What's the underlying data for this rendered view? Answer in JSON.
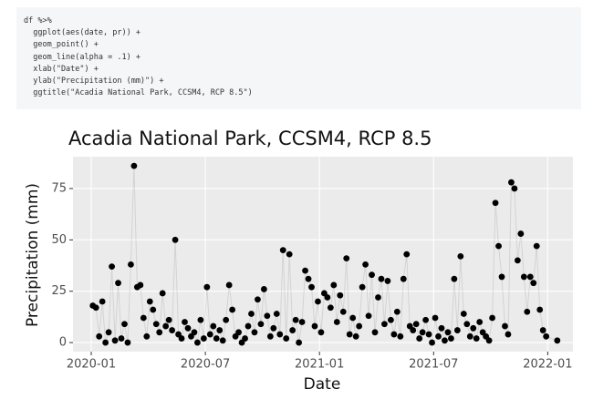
{
  "code": {
    "lines": [
      "df %>%",
      "  ggplot(aes(date, pr)) +",
      "  geom_point() +",
      "  geom_line(alpha = .1) +",
      "  xlab(\"Date\") +",
      "  ylab(\"Precipitation (mm)\") +",
      "  ggtitle(\"Acadia National Park, CCSM4, RCP 8.5\")"
    ]
  },
  "chart_data": {
    "type": "scatter",
    "title": "Acadia National Park, CCSM4, RCP 8.5",
    "x_label": "Date",
    "y_label": "Precipitation (mm)",
    "x": [
      "2020-01",
      "2020-01",
      "2020-01",
      "2020-01",
      "2020-01",
      "2020-01",
      "2020-02",
      "2020-02",
      "2020-02",
      "2020-02",
      "2020-02",
      "2020-02",
      "2020-03",
      "2020-03",
      "2020-03",
      "2020-03",
      "2020-03",
      "2020-03",
      "2020-04",
      "2020-04",
      "2020-04",
      "2020-04",
      "2020-04",
      "2020-04",
      "2020-05",
      "2020-05",
      "2020-05",
      "2020-05",
      "2020-05",
      "2020-05",
      "2020-06",
      "2020-06",
      "2020-06",
      "2020-06",
      "2020-06",
      "2020-06",
      "2020-07",
      "2020-07",
      "2020-07",
      "2020-07",
      "2020-07",
      "2020-07",
      "2020-08",
      "2020-08",
      "2020-08",
      "2020-08",
      "2020-08",
      "2020-08",
      "2020-09",
      "2020-09",
      "2020-09",
      "2020-09",
      "2020-09",
      "2020-09",
      "2020-10",
      "2020-10",
      "2020-10",
      "2020-10",
      "2020-10",
      "2020-10",
      "2020-11",
      "2020-11",
      "2020-11",
      "2020-11",
      "2020-11",
      "2020-11",
      "2020-12",
      "2020-12",
      "2020-12",
      "2020-12",
      "2020-12",
      "2020-12",
      "2021-01",
      "2021-01",
      "2021-01",
      "2021-01",
      "2021-01",
      "2021-01",
      "2021-02",
      "2021-02",
      "2021-02",
      "2021-02",
      "2021-02",
      "2021-02",
      "2021-03",
      "2021-03",
      "2021-03",
      "2021-03",
      "2021-03",
      "2021-03",
      "2021-04",
      "2021-04",
      "2021-04",
      "2021-04",
      "2021-04",
      "2021-04",
      "2021-05",
      "2021-05",
      "2021-05",
      "2021-05",
      "2021-05",
      "2021-05",
      "2021-06",
      "2021-06",
      "2021-06",
      "2021-06",
      "2021-06",
      "2021-06",
      "2021-07",
      "2021-07",
      "2021-07",
      "2021-07",
      "2021-07",
      "2021-07",
      "2021-08",
      "2021-08",
      "2021-08",
      "2021-08",
      "2021-08",
      "2021-08",
      "2021-09",
      "2021-09",
      "2021-09",
      "2021-09",
      "2021-09",
      "2021-09",
      "2021-10",
      "2021-10",
      "2021-10",
      "2021-10",
      "2021-10",
      "2021-10",
      "2021-11",
      "2021-11",
      "2021-11",
      "2021-11",
      "2021-11",
      "2021-11",
      "2021-12",
      "2021-12",
      "2021-12",
      "2021-12",
      "2021-12",
      "2021-12",
      "2022-01"
    ],
    "values": [
      18,
      17,
      3,
      20,
      0,
      5,
      37,
      1,
      29,
      2,
      9,
      0,
      38,
      86,
      27,
      28,
      12,
      3,
      20,
      16,
      9,
      5,
      24,
      8,
      11,
      6,
      50,
      4,
      2,
      10,
      7,
      3,
      5,
      0,
      11,
      2,
      27,
      4,
      8,
      2,
      6,
      1,
      11,
      28,
      16,
      3,
      5,
      0,
      2,
      8,
      14,
      5,
      21,
      9,
      26,
      13,
      3,
      7,
      14,
      4,
      45,
      2,
      43,
      6,
      11,
      0,
      10,
      35,
      31,
      27,
      8,
      20,
      5,
      24,
      22,
      17,
      28,
      10,
      23,
      15,
      41,
      4,
      12,
      3,
      8,
      27,
      38,
      13,
      33,
      5,
      22,
      31,
      9,
      30,
      11,
      4,
      15,
      3,
      31,
      43,
      8,
      6,
      9,
      2,
      5,
      11,
      4,
      0,
      12,
      3,
      7,
      1,
      5,
      2,
      31,
      6,
      42,
      14,
      9,
      3,
      7,
      2,
      10,
      5,
      3,
      1,
      12,
      68,
      47,
      32,
      8,
      4,
      78,
      75,
      40,
      53,
      32,
      15,
      32,
      29,
      47,
      16,
      6,
      3,
      1
    ],
    "color": "#000000",
    "line_alpha": 0.1,
    "ylim": [
      -4.4,
      90.5
    ],
    "yticks": [
      0,
      25,
      50,
      75
    ],
    "xticks": [
      "2020-01",
      "2020-07",
      "2021-01",
      "2021-07",
      "2022-01"
    ],
    "grid": true
  }
}
